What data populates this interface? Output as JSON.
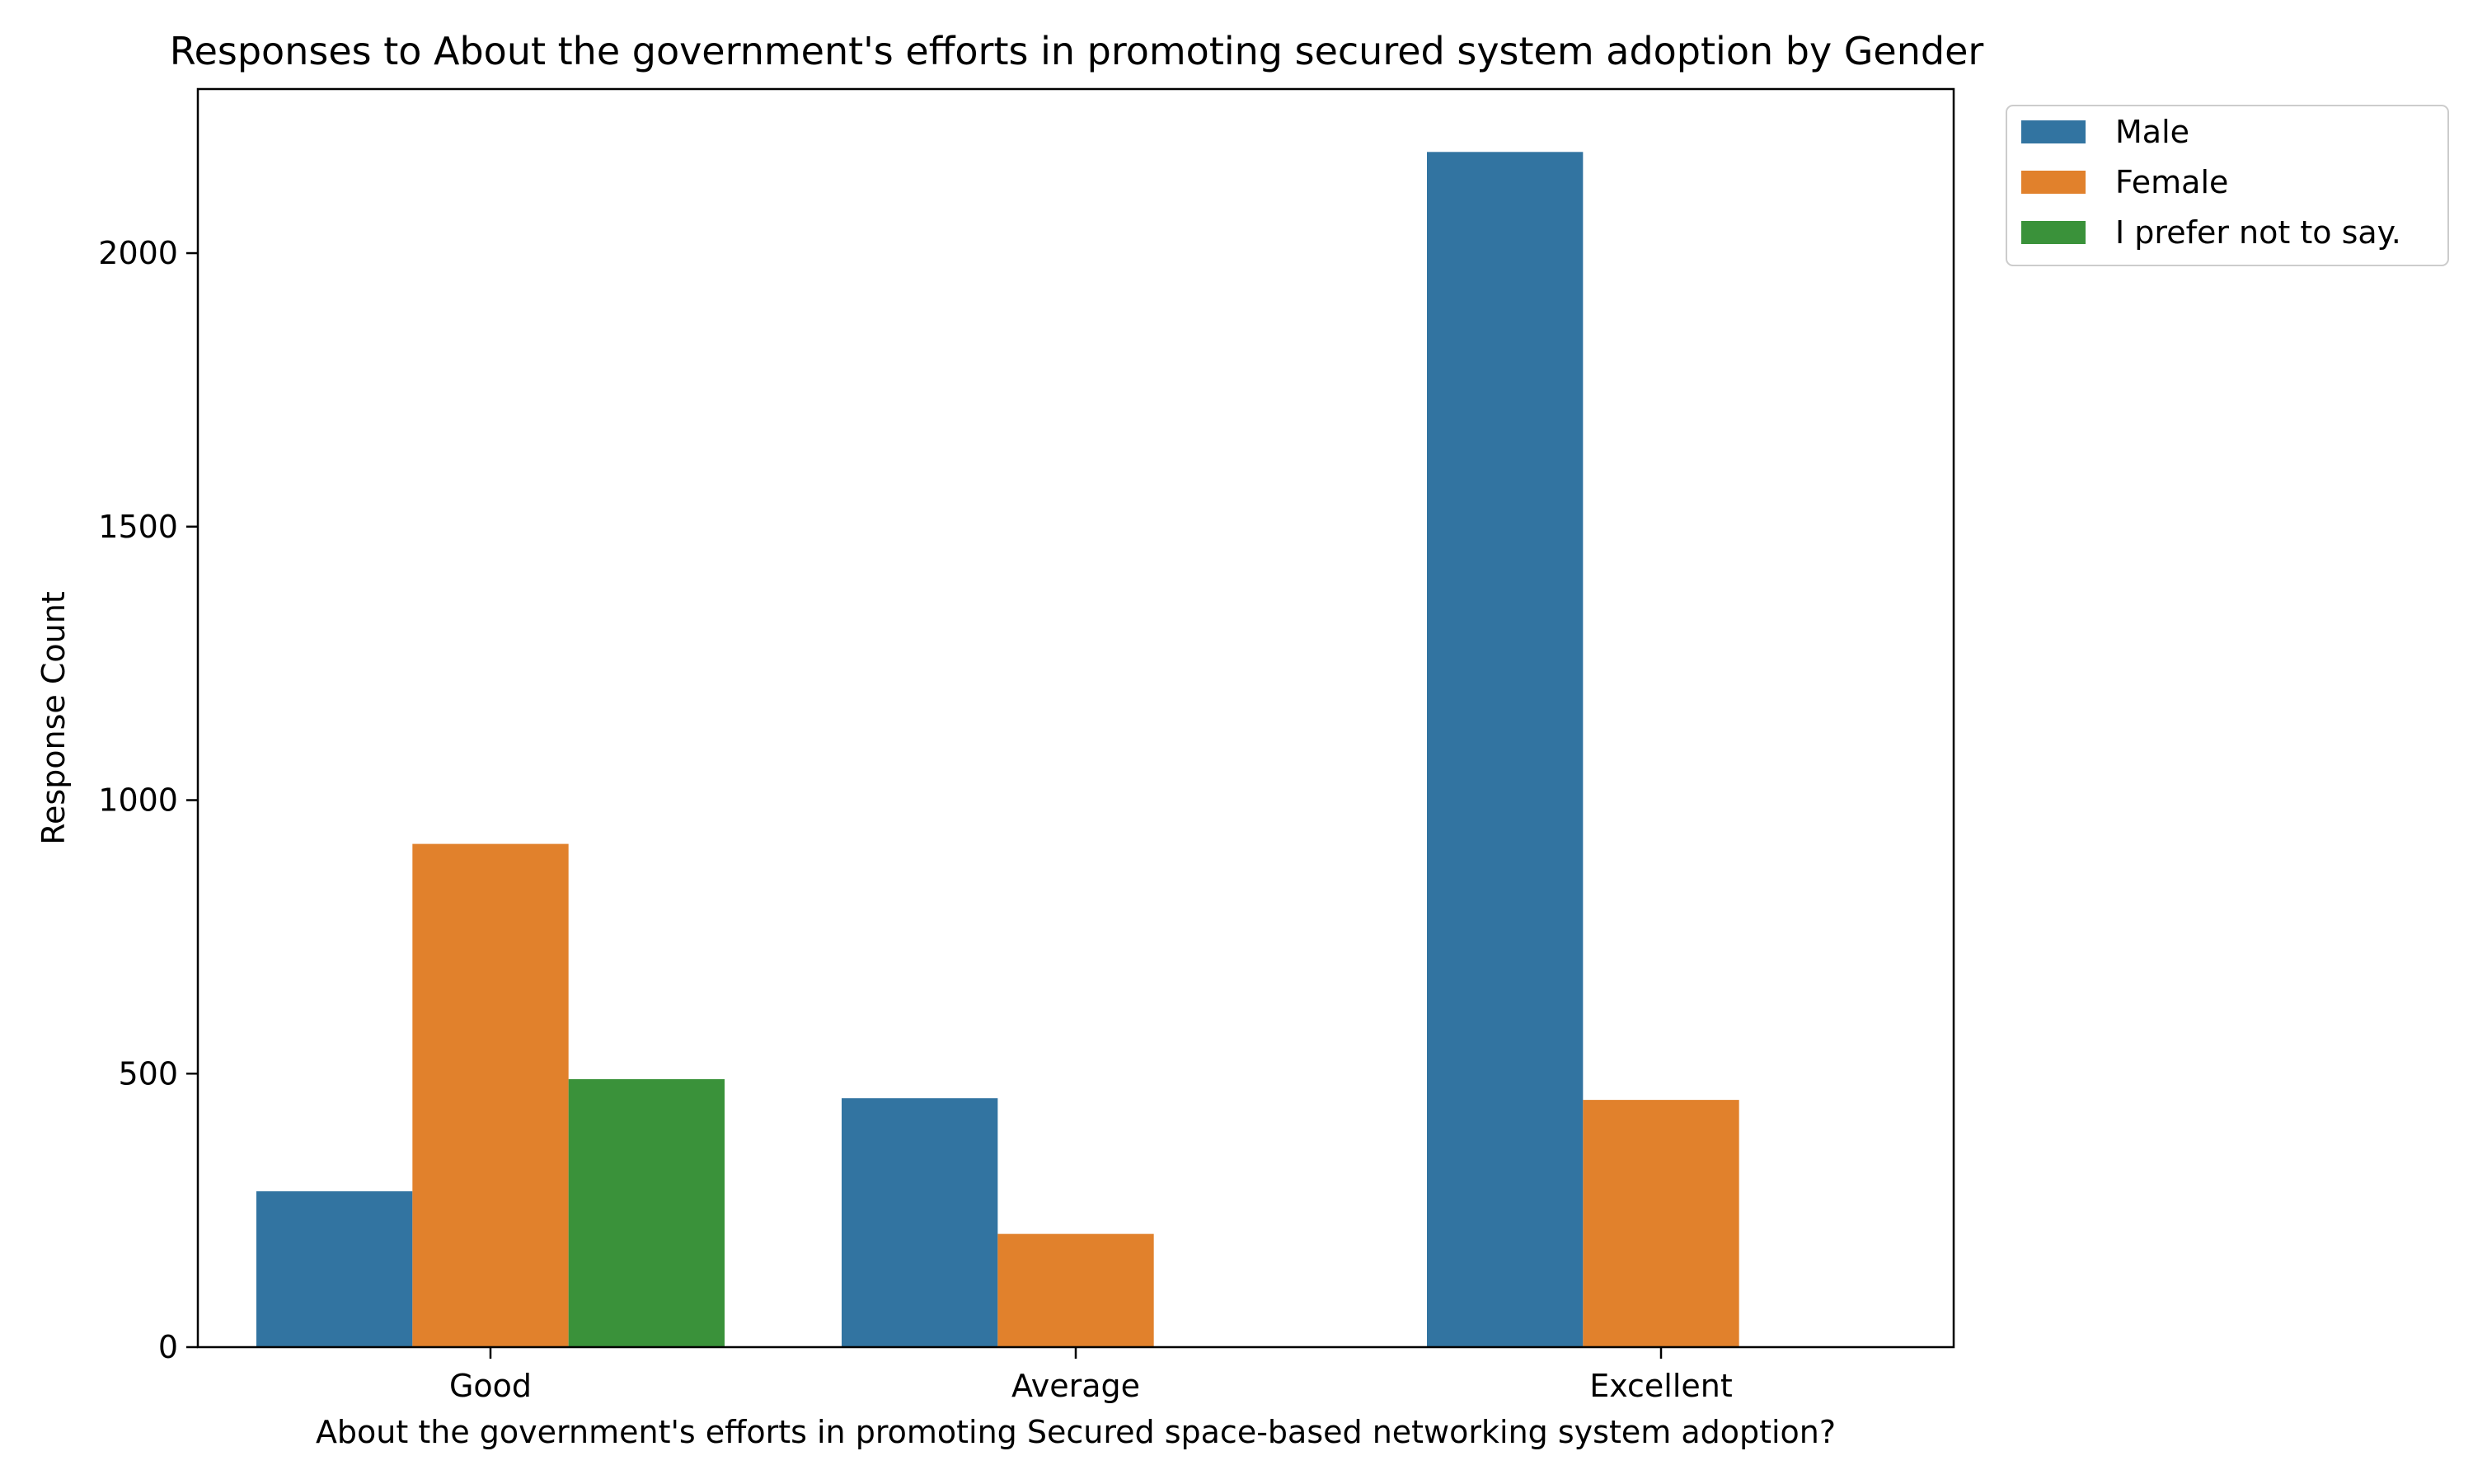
{
  "chart_data": {
    "type": "bar",
    "title": "Responses to About the government's efforts in promoting secured system adoption by Gender",
    "xlabel": "About the government's efforts in promoting Secured space-based networking system adoption?",
    "ylabel": "Response Count",
    "categories": [
      "Good",
      "Average",
      "Excellent"
    ],
    "series": [
      {
        "name": "Male",
        "color": "#3274a1",
        "values": [
          285,
          455,
          2185
        ]
      },
      {
        "name": "Female",
        "color": "#e1812c",
        "values": [
          920,
          207,
          452
        ]
      },
      {
        "name": "I prefer not to say.",
        "color": "#3a923a",
        "values": [
          490,
          0,
          0
        ]
      }
    ],
    "ylim": [
      0,
      2300
    ],
    "yticks": [
      0,
      500,
      1000,
      1500,
      2000
    ],
    "grid": false,
    "legend": "outside-top-right"
  }
}
